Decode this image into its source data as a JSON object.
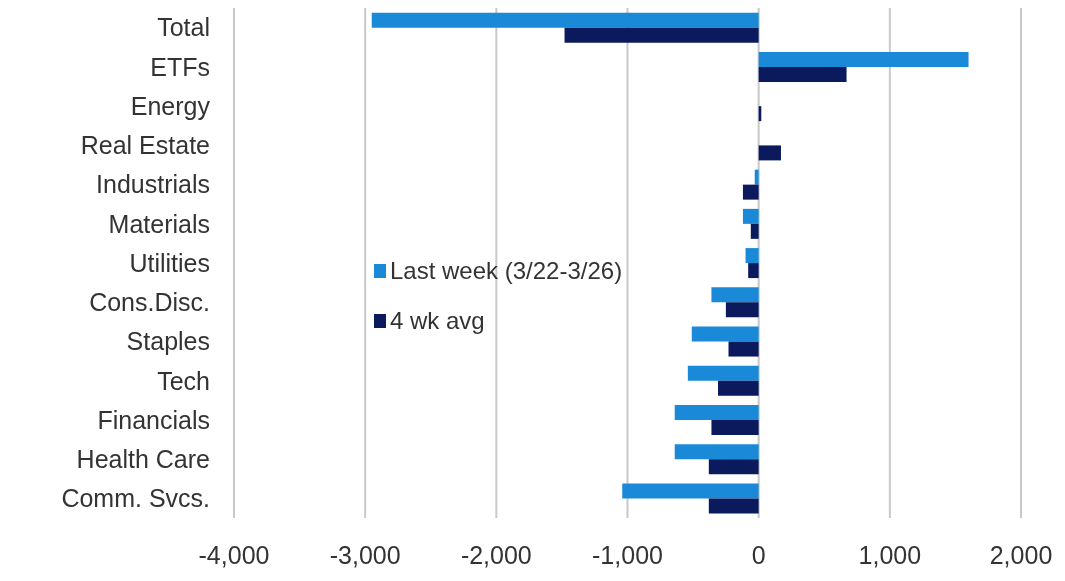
{
  "chart_data": {
    "type": "bar",
    "orientation": "horizontal",
    "categories": [
      "Total",
      "ETFs",
      "Energy",
      "Real Estate",
      "Industrials",
      "Materials",
      "Utilities",
      "Cons.Disc.",
      "Staples",
      "Tech",
      "Financials",
      "Health Care",
      "Comm. Svcs."
    ],
    "series": [
      {
        "name": "Last week (3/22-3/26)",
        "color": "#1a8ad8",
        "values": [
          -2950,
          1600,
          0,
          0,
          -30,
          -120,
          -100,
          -360,
          -510,
          -540,
          -640,
          -640,
          -1040
        ]
      },
      {
        "name": "4 wk avg",
        "color": "#0a1a5c",
        "values": [
          -1480,
          670,
          20,
          170,
          -120,
          -60,
          -80,
          -250,
          -230,
          -310,
          -360,
          -380,
          -380
        ]
      }
    ],
    "xlim": [
      -4000,
      2000
    ],
    "xticks": [
      {
        "value": -4000,
        "label": "-4,000"
      },
      {
        "value": -3000,
        "label": "-3,000"
      },
      {
        "value": -2000,
        "label": "-2,000"
      },
      {
        "value": -1000,
        "label": "-1,000"
      },
      0,
      {
        "value": 1000,
        "label": "1,000"
      },
      {
        "value": 2000,
        "label": "2,000"
      }
    ],
    "grid": "x",
    "legend": "left"
  }
}
